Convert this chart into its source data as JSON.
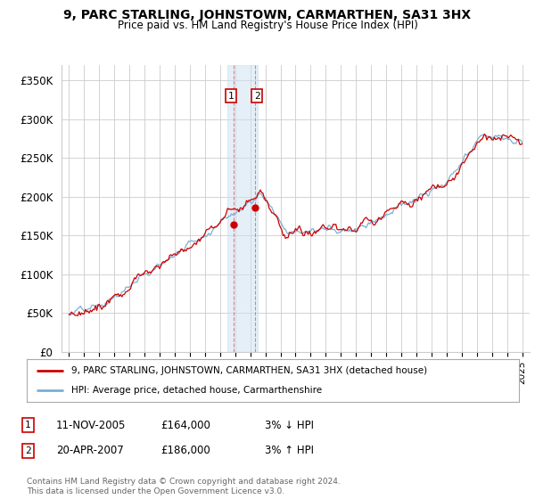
{
  "title": "9, PARC STARLING, JOHNSTOWN, CARMARTHEN, SA31 3HX",
  "subtitle": "Price paid vs. HM Land Registry's House Price Index (HPI)",
  "ylabel_ticks": [
    0,
    50000,
    100000,
    150000,
    200000,
    250000,
    300000,
    350000
  ],
  "ylabel_labels": [
    "£0",
    "£50K",
    "£100K",
    "£150K",
    "£200K",
    "£250K",
    "£300K",
    "£350K"
  ],
  "xlim": [
    1994.5,
    2025.5
  ],
  "ylim": [
    0,
    370000
  ],
  "property_color": "#cc0000",
  "hpi_color": "#7aafd4",
  "legend_property": "9, PARC STARLING, JOHNSTOWN, CARMARTHEN, SA31 3HX (detached house)",
  "legend_hpi": "HPI: Average price, detached house, Carmarthenshire",
  "sale1_price": 164000,
  "sale1_year": 2005.87,
  "sale2_price": 186000,
  "sale2_year": 2007.29,
  "shade_x1": 2005.5,
  "shade_x2": 2007.5,
  "dashed_x1": 2005.87,
  "dashed_x2": 2007.29,
  "footer": "Contains HM Land Registry data © Crown copyright and database right 2024.\nThis data is licensed under the Open Government Licence v3.0.",
  "table_rows": [
    {
      "num": "1",
      "date": "11-NOV-2005",
      "price": "£164,000",
      "hpi": "3% ↓ HPI"
    },
    {
      "num": "2",
      "date": "20-APR-2007",
      "price": "£186,000",
      "hpi": "3% ↑ HPI"
    }
  ]
}
